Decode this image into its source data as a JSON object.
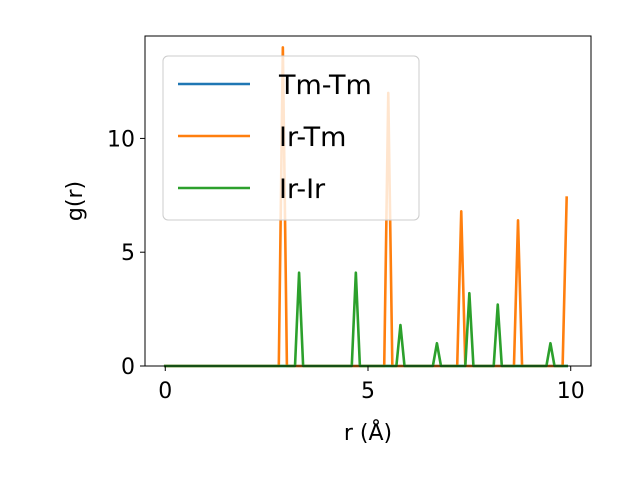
{
  "chart_data": {
    "type": "line",
    "title": "",
    "xlabel": "r (Å)",
    "ylabel": "g(r)",
    "xlim": [
      -0.5,
      10.5
    ],
    "ylim": [
      0,
      14.5
    ],
    "xticks": [
      0,
      5,
      10
    ],
    "yticks": [
      0,
      5,
      10
    ],
    "grid": false,
    "legend_position": "upper-left",
    "series": [
      {
        "name": "Tm-Tm",
        "color": "#1f77b4",
        "x": [
          0,
          0.1,
          9.9
        ],
        "y": [
          0,
          0,
          0
        ]
      },
      {
        "name": "Ir-Tm",
        "color": "#ff7f0e",
        "x": [
          0,
          2.8,
          2.9,
          3.0,
          5.4,
          5.5,
          5.6,
          7.2,
          7.3,
          7.4,
          8.6,
          8.7,
          8.8,
          9.8,
          9.9
        ],
        "y": [
          0,
          0,
          14.0,
          0,
          0,
          12.0,
          0,
          0,
          6.8,
          0,
          0,
          6.4,
          0,
          0,
          7.4
        ]
      },
      {
        "name": "Ir-Ir",
        "color": "#2ca02c",
        "x": [
          0,
          3.2,
          3.3,
          3.4,
          4.6,
          4.7,
          4.8,
          5.7,
          5.8,
          5.9,
          6.6,
          6.7,
          6.8,
          7.4,
          7.5,
          7.6,
          8.1,
          8.2,
          8.3,
          9.4,
          9.5,
          9.6,
          9.9
        ],
        "y": [
          0,
          0,
          4.1,
          0,
          0,
          4.1,
          0,
          0,
          1.8,
          0,
          0,
          1.0,
          0,
          0,
          3.2,
          0,
          0,
          2.7,
          0,
          0,
          1.0,
          0,
          0
        ]
      }
    ]
  }
}
